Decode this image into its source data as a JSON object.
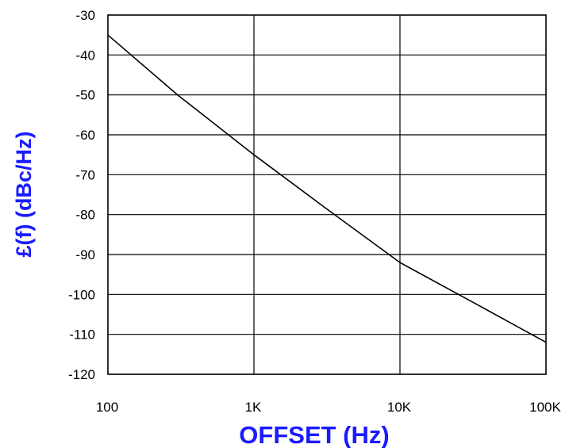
{
  "chart_data": {
    "type": "line",
    "title": "",
    "xlabel": "OFFSET (Hz)",
    "ylabel": "£(f) (dBc/Hz)",
    "x_scale": "log",
    "xlim": [
      100,
      100000
    ],
    "ylim": [
      -120,
      -30
    ],
    "x_ticks": [
      100,
      1000,
      10000,
      100000
    ],
    "x_tick_labels": [
      "100",
      "1K",
      "10K",
      "100K"
    ],
    "y_ticks": [
      -30,
      -40,
      -50,
      -60,
      -70,
      -80,
      -90,
      -100,
      -110,
      -120
    ],
    "y_tick_labels": [
      "-30",
      "-40",
      "-50",
      "-60",
      "-70",
      "-80",
      "-90",
      "-100",
      "-110",
      "-120"
    ],
    "grid": true,
    "legend": "none",
    "series": [
      {
        "x": [
          100,
          300,
          1000,
          3000,
          10000,
          30000,
          100000
        ],
        "y": [
          -35,
          -50,
          -65,
          -78,
          -92,
          -101.5,
          -112
        ],
        "color": "#000000"
      }
    ],
    "colors": {
      "axis_title": "#1a1aff",
      "line": "#000000",
      "grid": "#000000"
    }
  }
}
